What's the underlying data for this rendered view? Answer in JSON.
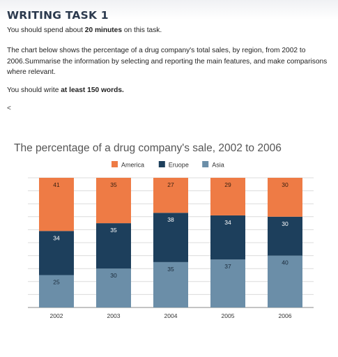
{
  "task": {
    "title": "WRITING TASK 1",
    "p1_pre": "You should spend about ",
    "p1_bold": "20 minutes",
    "p1_post": " on this task.",
    "p2": "The chart below shows the percentage of a drug company's total sales, by region, from 2002 to 2006.Summarise the information by selecting and reporting the main features, and make comparisons where relevant.",
    "p3_pre": "You should write ",
    "p3_bold": "at least 150 words.",
    "back_glyph": "<"
  },
  "chart_data": {
    "type": "bar",
    "stacked": true,
    "title": "The percentage of a drug company's sale, 2002 to 2006",
    "xlabel": "",
    "ylabel": "",
    "ylim": [
      0,
      100
    ],
    "grid": true,
    "legend_position": "top",
    "categories": [
      "2002",
      "2003",
      "2004",
      "2005",
      "2006"
    ],
    "series": [
      {
        "name": "Asia",
        "color": "#6b8ea8",
        "values": [
          25,
          30,
          35,
          37,
          40
        ]
      },
      {
        "name": "Eruope",
        "color": "#1d3f5c",
        "values": [
          34,
          35,
          38,
          34,
          30
        ]
      },
      {
        "name": "America",
        "color": "#ee7b45",
        "values": [
          41,
          35,
          27,
          29,
          30
        ]
      }
    ],
    "legend_order": [
      "America",
      "Eruope",
      "Asia"
    ]
  }
}
